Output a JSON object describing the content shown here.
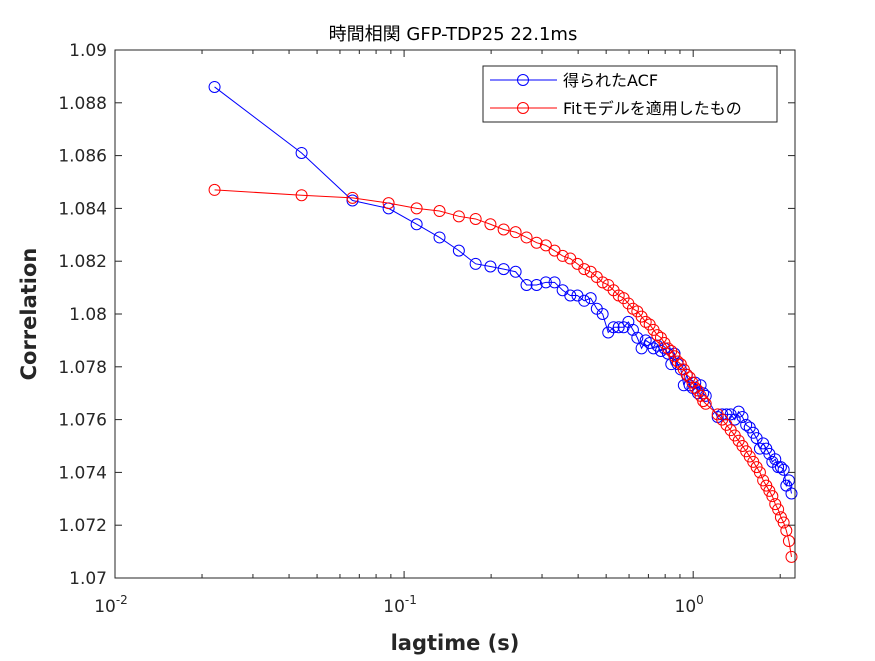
{
  "chart_data": {
    "type": "line",
    "title": "時間相関 GFP-TDP25 22.1ms",
    "xlabel": "lagtime (s)",
    "ylabel": "Correlation",
    "xscale": "log",
    "xlim": [
      0.01,
      2.25
    ],
    "ylim": [
      1.07,
      1.09
    ],
    "x_ticks": [
      {
        "value": 0.01,
        "base": "10",
        "exp": "-2"
      },
      {
        "value": 0.1,
        "base": "10",
        "exp": "-1"
      },
      {
        "value": 1,
        "base": "10",
        "exp": "0"
      }
    ],
    "y_ticks": [
      {
        "value": 1.07,
        "label": "1.07"
      },
      {
        "value": 1.072,
        "label": "1.072"
      },
      {
        "value": 1.074,
        "label": "1.074"
      },
      {
        "value": 1.076,
        "label": "1.076"
      },
      {
        "value": 1.078,
        "label": "1.078"
      },
      {
        "value": 1.08,
        "label": "1.08"
      },
      {
        "value": 1.082,
        "label": "1.082"
      },
      {
        "value": 1.084,
        "label": "1.084"
      },
      {
        "value": 1.086,
        "label": "1.086"
      },
      {
        "value": 1.088,
        "label": "1.088"
      },
      {
        "value": 1.09,
        "label": "1.09"
      }
    ],
    "grid": false,
    "legend_position": "top-right",
    "marker": "circle",
    "series": [
      {
        "name": "得られたACF",
        "color": "#0000ff",
        "points": [
          [
            0.0221,
            1.0886
          ],
          [
            0.0442,
            1.0861
          ],
          [
            0.0663,
            1.0843
          ],
          [
            0.0884,
            1.084
          ],
          [
            0.1105,
            1.0834
          ],
          [
            0.1326,
            1.0829
          ],
          [
            0.1547,
            1.0824
          ],
          [
            0.1768,
            1.0819
          ],
          [
            0.1989,
            1.0818
          ],
          [
            0.221,
            1.0817
          ],
          [
            0.2431,
            1.0816
          ],
          [
            0.2652,
            1.0811
          ],
          [
            0.2873,
            1.0811
          ],
          [
            0.3094,
            1.0812
          ],
          [
            0.3315,
            1.0812
          ],
          [
            0.3536,
            1.0809
          ],
          [
            0.3757,
            1.0807
          ],
          [
            0.3978,
            1.0807
          ],
          [
            0.4199,
            1.0805
          ],
          [
            0.442,
            1.0806
          ],
          [
            0.4641,
            1.0802
          ],
          [
            0.4862,
            1.08
          ],
          [
            0.5083,
            1.0793
          ],
          [
            0.5304,
            1.0795
          ],
          [
            0.5525,
            1.0795
          ],
          [
            0.5746,
            1.0795
          ],
          [
            0.5967,
            1.0797
          ],
          [
            0.6188,
            1.0794
          ],
          [
            0.6409,
            1.0791
          ],
          [
            0.663,
            1.0787
          ],
          [
            0.6851,
            1.079
          ],
          [
            0.7072,
            1.0789
          ],
          [
            0.7293,
            1.0787
          ],
          [
            0.7514,
            1.0788
          ],
          [
            0.7735,
            1.0786
          ],
          [
            0.7956,
            1.0787
          ],
          [
            0.8177,
            1.0785
          ],
          [
            0.8398,
            1.0781
          ],
          [
            0.8619,
            1.0785
          ],
          [
            0.884,
            1.0781
          ],
          [
            0.9061,
            1.0779
          ],
          [
            0.9282,
            1.0773
          ],
          [
            0.9503,
            1.0777
          ],
          [
            0.9724,
            1.0773
          ],
          [
            0.9945,
            1.0772
          ],
          [
            1.0166,
            1.0774
          ],
          [
            1.0387,
            1.077
          ],
          [
            1.0608,
            1.0773
          ],
          [
            1.0829,
            1.077
          ],
          [
            1.105,
            1.0769
          ],
          [
            1.2155,
            1.0761
          ],
          [
            1.2597,
            1.0762
          ],
          [
            1.3039,
            1.0762
          ],
          [
            1.3481,
            1.0762
          ],
          [
            1.3923,
            1.076
          ],
          [
            1.4365,
            1.0763
          ],
          [
            1.4807,
            1.0761
          ],
          [
            1.5249,
            1.0758
          ],
          [
            1.5691,
            1.0757
          ],
          [
            1.6133,
            1.0755
          ],
          [
            1.6575,
            1.0753
          ],
          [
            1.7017,
            1.0749
          ],
          [
            1.7459,
            1.0751
          ],
          [
            1.7901,
            1.0749
          ],
          [
            1.8343,
            1.0747
          ],
          [
            1.8785,
            1.0744
          ],
          [
            1.9227,
            1.0745
          ],
          [
            1.9669,
            1.0742
          ],
          [
            2.0111,
            1.0742
          ],
          [
            2.0553,
            1.0741
          ],
          [
            2.0995,
            1.0735
          ],
          [
            2.1437,
            1.0737
          ],
          [
            2.1879,
            1.0732
          ]
        ]
      },
      {
        "name": "Fitモデルを適用したもの",
        "color": "#ff0000",
        "points": [
          [
            0.0221,
            1.0847
          ],
          [
            0.0442,
            1.0845
          ],
          [
            0.0663,
            1.0844
          ],
          [
            0.0884,
            1.0842
          ],
          [
            0.1105,
            1.084
          ],
          [
            0.1326,
            1.0839
          ],
          [
            0.1547,
            1.0837
          ],
          [
            0.1768,
            1.0836
          ],
          [
            0.1989,
            1.0834
          ],
          [
            0.221,
            1.0832
          ],
          [
            0.2431,
            1.0831
          ],
          [
            0.2652,
            1.0829
          ],
          [
            0.2873,
            1.0827
          ],
          [
            0.3094,
            1.0826
          ],
          [
            0.3315,
            1.0824
          ],
          [
            0.3536,
            1.0822
          ],
          [
            0.3757,
            1.0821
          ],
          [
            0.3978,
            1.0819
          ],
          [
            0.4199,
            1.0817
          ],
          [
            0.442,
            1.0816
          ],
          [
            0.4641,
            1.0814
          ],
          [
            0.4862,
            1.0812
          ],
          [
            0.5083,
            1.0811
          ],
          [
            0.5304,
            1.0809
          ],
          [
            0.5525,
            1.0807
          ],
          [
            0.5746,
            1.0806
          ],
          [
            0.5967,
            1.0804
          ],
          [
            0.6188,
            1.0802
          ],
          [
            0.6409,
            1.0801
          ],
          [
            0.663,
            1.0799
          ],
          [
            0.6851,
            1.0797
          ],
          [
            0.7072,
            1.0796
          ],
          [
            0.7293,
            1.0794
          ],
          [
            0.7514,
            1.0792
          ],
          [
            0.7735,
            1.0791
          ],
          [
            0.7956,
            1.0789
          ],
          [
            0.8177,
            1.0787
          ],
          [
            0.8398,
            1.0786
          ],
          [
            0.8619,
            1.0784
          ],
          [
            0.884,
            1.0782
          ],
          [
            0.9061,
            1.0781
          ],
          [
            0.9282,
            1.0779
          ],
          [
            0.9503,
            1.0777
          ],
          [
            0.9724,
            1.0776
          ],
          [
            0.9945,
            1.0774
          ],
          [
            1.0166,
            1.0772
          ],
          [
            1.0387,
            1.0771
          ],
          [
            1.0608,
            1.0769
          ],
          [
            1.0829,
            1.0767
          ],
          [
            1.105,
            1.0766
          ],
          [
            1.2155,
            1.0762
          ],
          [
            1.2597,
            1.076
          ],
          [
            1.3039,
            1.0758
          ],
          [
            1.3481,
            1.0756
          ],
          [
            1.3923,
            1.0754
          ],
          [
            1.4365,
            1.0752
          ],
          [
            1.4807,
            1.075
          ],
          [
            1.5249,
            1.0748
          ],
          [
            1.5691,
            1.0746
          ],
          [
            1.6133,
            1.0744
          ],
          [
            1.6575,
            1.0742
          ],
          [
            1.7017,
            1.074
          ],
          [
            1.7459,
            1.0737
          ],
          [
            1.7901,
            1.0735
          ],
          [
            1.8343,
            1.0733
          ],
          [
            1.8785,
            1.0731
          ],
          [
            1.9227,
            1.0728
          ],
          [
            1.9669,
            1.0726
          ],
          [
            2.0111,
            1.0723
          ],
          [
            2.0553,
            1.0721
          ],
          [
            2.0995,
            1.0718
          ],
          [
            2.1437,
            1.0714
          ],
          [
            2.1879,
            1.0708
          ]
        ]
      }
    ]
  }
}
